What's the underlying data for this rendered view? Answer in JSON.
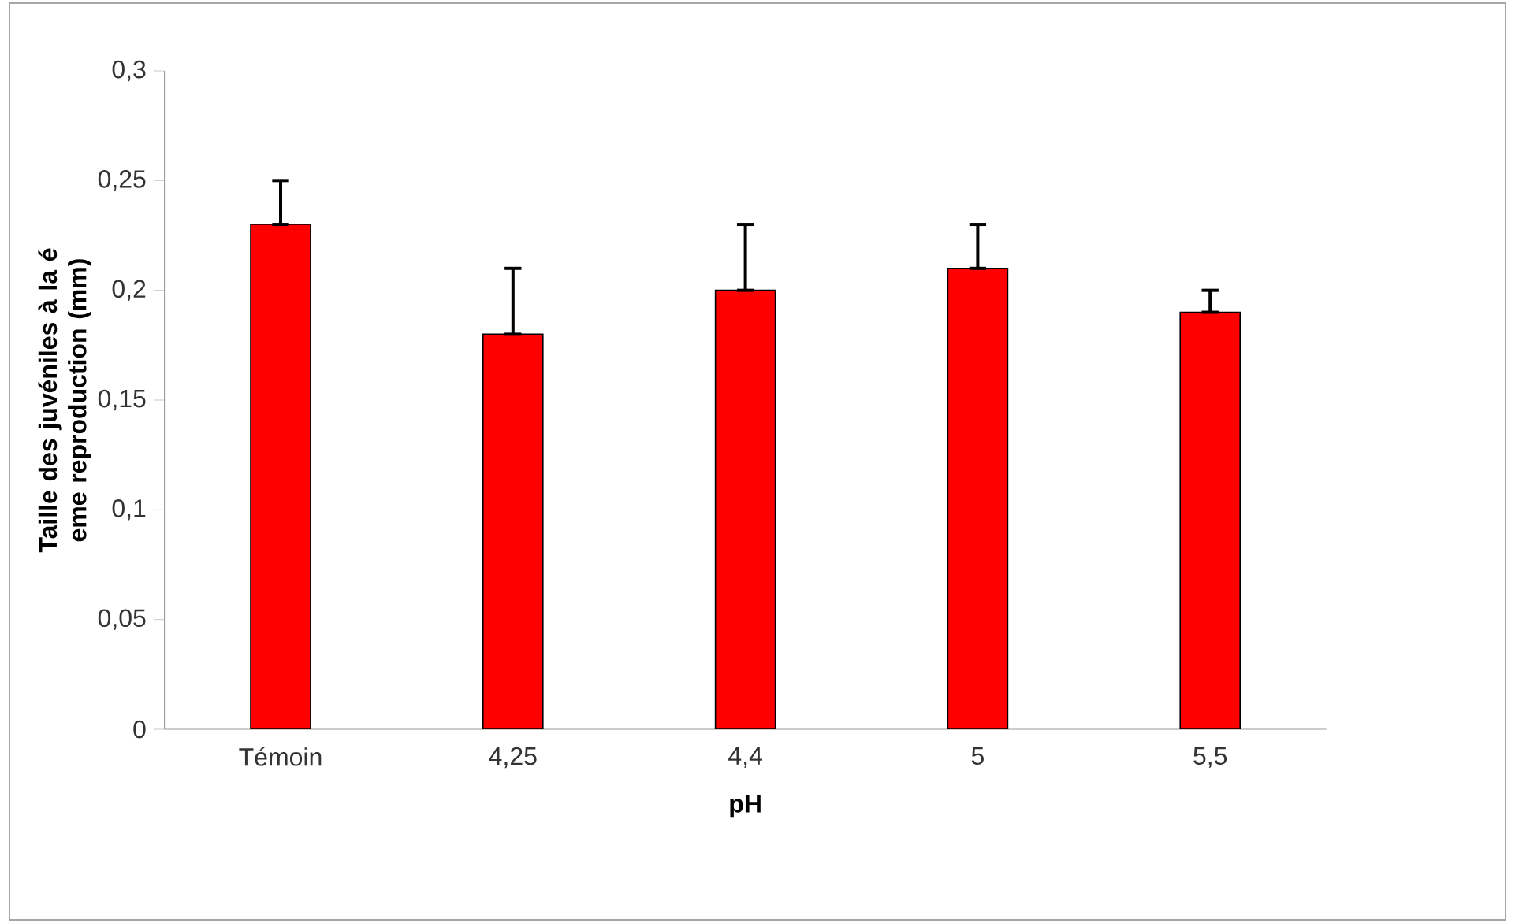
{
  "chart_data": {
    "type": "bar",
    "xlabel": "pH",
    "ylabel": "Taille des juvéniles à la é eme reproduction (mm)",
    "categories": [
      "Témoin",
      "4,25",
      "4,4",
      "5",
      "5,5"
    ],
    "values": [
      0.23,
      0.18,
      0.2,
      0.21,
      0.19
    ],
    "errors": [
      [
        0.23,
        0.25
      ],
      [
        0.18,
        0.21
      ],
      [
        0.2,
        0.23
      ],
      [
        0.21,
        0.23
      ],
      [
        0.19,
        0.2
      ]
    ],
    "color": "#ff0000",
    "ylim": [
      0,
      0.3
    ],
    "yticks": [
      {
        "value": 0,
        "label": "0"
      },
      {
        "value": 0.05,
        "label": "0,05"
      },
      {
        "value": 0.1,
        "label": "0,1"
      },
      {
        "value": 0.15,
        "label": "0,15"
      },
      {
        "value": 0.2,
        "label": "0,2"
      },
      {
        "value": 0.25,
        "label": "0,25"
      },
      {
        "value": 0.3,
        "label": "0,3"
      }
    ],
    "grid": false
  }
}
